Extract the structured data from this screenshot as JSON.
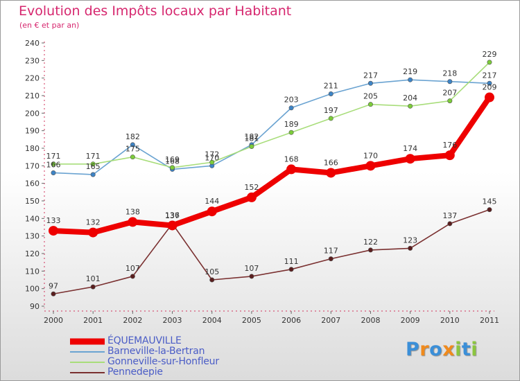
{
  "chart_data": {
    "type": "line",
    "title": "Evolution des Impôts locaux par Habitant",
    "subtitle": "(en € et par an)",
    "x": [
      "2000",
      "2001",
      "2002",
      "2003",
      "2004",
      "2005",
      "2006",
      "2007",
      "2008",
      "2009",
      "2010",
      "2011"
    ],
    "ylim": [
      90,
      240
    ],
    "yticks": [
      90,
      100,
      110,
      120,
      130,
      140,
      150,
      160,
      170,
      180,
      190,
      200,
      210,
      220,
      230,
      240
    ],
    "grid": false,
    "legend_position": "bottom-left",
    "series": [
      {
        "name": "Barneville-la-Bertran",
        "color": "#6aa3d1",
        "point_color": "#3d84c6",
        "values": [
          166,
          165,
          182,
          168,
          170,
          182,
          203,
          211,
          217,
          219,
          218,
          217
        ],
        "labels": [
          "166",
          "165",
          "182",
          "168",
          "170",
          "182",
          "203",
          "211",
          "217",
          "219",
          "218",
          "217"
        ]
      },
      {
        "name": "Gonneville-sur-Honfleur",
        "color": "#a8dd7a",
        "point_color": "#7ccc3a",
        "values": [
          171,
          171,
          175,
          169,
          172,
          181,
          189,
          197,
          205,
          204,
          207,
          229
        ],
        "labels": [
          "171",
          "171",
          "175",
          "169",
          "172",
          "181",
          "189",
          "197",
          "205",
          "204",
          "207",
          "229"
        ]
      },
      {
        "name": "Pennedepie",
        "color": "#7a3030",
        "point_color": "#5a1e1e",
        "values": [
          97,
          101,
          107,
          137,
          105,
          107,
          111,
          117,
          122,
          123,
          137,
          145
        ],
        "labels": [
          "97",
          "101",
          "107",
          "137",
          "105",
          "107",
          "111",
          "117",
          "122",
          "123",
          "137",
          "145"
        ]
      },
      {
        "name": "ÉQUEMAUVILLE",
        "color": "#ee0000",
        "point_color": "#ee0000",
        "values": [
          133,
          132,
          138,
          136,
          144,
          152,
          168,
          166,
          170,
          174,
          176,
          209
        ],
        "labels": [
          "133",
          "132",
          "138",
          "136",
          "144",
          "152",
          "168",
          "166",
          "170",
          "174",
          "176",
          "209"
        ]
      }
    ]
  },
  "legend": {
    "items": [
      {
        "label": "ÉQUEMAUVILLE",
        "color": "#ee0000",
        "thickness": 9
      },
      {
        "label": "Barneville-la-Bertran",
        "color": "#6aa3d1",
        "thickness": 2
      },
      {
        "label": "Gonneville-sur-Honfleur",
        "color": "#a8dd7a",
        "thickness": 2
      },
      {
        "label": "Pennedepie",
        "color": "#7a3030",
        "thickness": 2
      }
    ]
  },
  "logo": {
    "letters": [
      "P",
      "r",
      "o",
      "x",
      "i",
      "t",
      "i"
    ],
    "colors": [
      "#3b8fd8",
      "#f08a1c",
      "#3b8fd8",
      "#f08a1c",
      "#8cc63f",
      "#3b8fd8",
      "#8cc63f"
    ]
  }
}
